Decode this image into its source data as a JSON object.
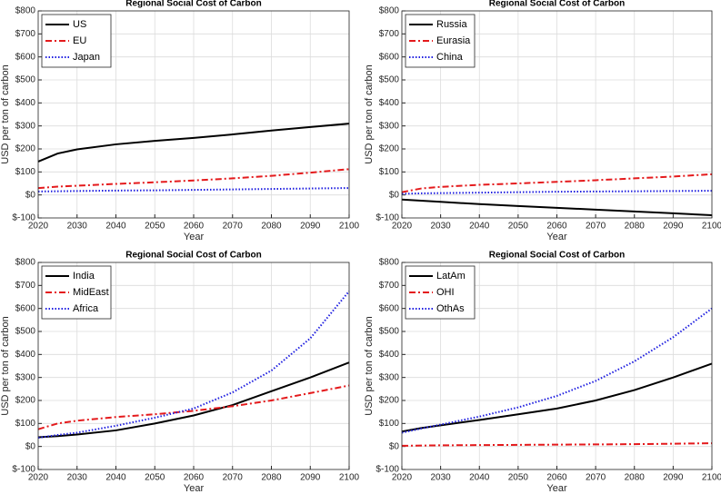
{
  "chart_data": [
    {
      "type": "line",
      "title": "Regional Social Cost of Carbon",
      "xlabel": "Year",
      "ylabel": "USD per ton of carbon",
      "x": [
        2020,
        2025,
        2030,
        2040,
        2050,
        2060,
        2070,
        2080,
        2090,
        2100
      ],
      "series": [
        {
          "name": "US",
          "color": "#000000",
          "style": "solid",
          "values": [
            145,
            180,
            198,
            220,
            235,
            248,
            263,
            280,
            295,
            310
          ]
        },
        {
          "name": "EU",
          "color": "#e41a1c",
          "style": "dashdot",
          "values": [
            30,
            36,
            40,
            48,
            55,
            63,
            72,
            83,
            97,
            112
          ]
        },
        {
          "name": "Japan",
          "color": "#1f1fe0",
          "style": "dotted",
          "values": [
            15,
            16,
            17,
            19,
            20,
            22,
            24,
            26,
            28,
            30
          ]
        }
      ],
      "xlim": [
        2020,
        2100
      ],
      "xticks": [
        2020,
        2030,
        2040,
        2050,
        2060,
        2070,
        2080,
        2090,
        2100
      ],
      "ylim": [
        -100,
        800
      ],
      "yticks": [
        {
          "value": -100,
          "label": "$-100"
        },
        {
          "value": 0,
          "label": "$0"
        },
        {
          "value": 100,
          "label": "$100"
        },
        {
          "value": 200,
          "label": "$200"
        },
        {
          "value": 300,
          "label": "$300"
        },
        {
          "value": 400,
          "label": "$400"
        },
        {
          "value": 500,
          "label": "$500"
        },
        {
          "value": 600,
          "label": "$600"
        },
        {
          "value": 700,
          "label": "$700"
        },
        {
          "value": 800,
          "label": "$800"
        }
      ],
      "grid": true,
      "legend": "top-left"
    },
    {
      "type": "line",
      "title": "Regional Social Cost of Carbon",
      "xlabel": "Year",
      "ylabel": "USD per ton of carbon",
      "x": [
        2020,
        2025,
        2030,
        2040,
        2050,
        2060,
        2070,
        2080,
        2090,
        2100
      ],
      "series": [
        {
          "name": "Russia",
          "color": "#000000",
          "style": "solid",
          "values": [
            -20,
            -25,
            -30,
            -40,
            -48,
            -56,
            -64,
            -72,
            -80,
            -88
          ]
        },
        {
          "name": "Eurasia",
          "color": "#e41a1c",
          "style": "dashdot",
          "values": [
            12,
            28,
            35,
            44,
            50,
            57,
            64,
            72,
            80,
            90
          ]
        },
        {
          "name": "China",
          "color": "#1f1fe0",
          "style": "dotted",
          "values": [
            5,
            7,
            8,
            10,
            12,
            14,
            15,
            16,
            17,
            18
          ]
        }
      ],
      "xlim": [
        2020,
        2100
      ],
      "xticks": [
        2020,
        2030,
        2040,
        2050,
        2060,
        2070,
        2080,
        2090,
        2100
      ],
      "ylim": [
        -100,
        800
      ],
      "yticks": [
        {
          "value": -100,
          "label": "$-100"
        },
        {
          "value": 0,
          "label": "$0"
        },
        {
          "value": 100,
          "label": "$100"
        },
        {
          "value": 200,
          "label": "$200"
        },
        {
          "value": 300,
          "label": "$300"
        },
        {
          "value": 400,
          "label": "$400"
        },
        {
          "value": 500,
          "label": "$500"
        },
        {
          "value": 600,
          "label": "$600"
        },
        {
          "value": 700,
          "label": "$700"
        },
        {
          "value": 800,
          "label": "$800"
        }
      ],
      "grid": true,
      "legend": "top-left"
    },
    {
      "type": "line",
      "title": "Regional Social Cost of Carbon",
      "xlabel": "Year",
      "ylabel": "USD per ton of carbon",
      "x": [
        2020,
        2025,
        2030,
        2040,
        2050,
        2060,
        2070,
        2080,
        2090,
        2100
      ],
      "series": [
        {
          "name": "India",
          "color": "#000000",
          "style": "solid",
          "values": [
            40,
            45,
            52,
            70,
            100,
            135,
            180,
            240,
            300,
            365
          ]
        },
        {
          "name": "MidEast",
          "color": "#e41a1c",
          "style": "dashdot",
          "values": [
            75,
            100,
            112,
            128,
            140,
            155,
            175,
            200,
            232,
            265
          ]
        },
        {
          "name": "Africa",
          "color": "#1f1fe0",
          "style": "dotted",
          "values": [
            38,
            50,
            60,
            90,
            125,
            165,
            235,
            330,
            470,
            675
          ]
        }
      ],
      "xlim": [
        2020,
        2100
      ],
      "xticks": [
        2020,
        2030,
        2040,
        2050,
        2060,
        2070,
        2080,
        2090,
        2100
      ],
      "ylim": [
        -100,
        800
      ],
      "yticks": [
        {
          "value": -100,
          "label": "$-100"
        },
        {
          "value": 0,
          "label": "$0"
        },
        {
          "value": 100,
          "label": "$100"
        },
        {
          "value": 200,
          "label": "$200"
        },
        {
          "value": 300,
          "label": "$300"
        },
        {
          "value": 400,
          "label": "$400"
        },
        {
          "value": 500,
          "label": "$500"
        },
        {
          "value": 600,
          "label": "$600"
        },
        {
          "value": 700,
          "label": "$700"
        },
        {
          "value": 800,
          "label": "$800"
        }
      ],
      "grid": true,
      "legend": "top-left"
    },
    {
      "type": "line",
      "title": "Regional Social Cost of Carbon",
      "xlabel": "Year",
      "ylabel": "USD per ton of carbon",
      "x": [
        2020,
        2025,
        2030,
        2040,
        2050,
        2060,
        2070,
        2080,
        2090,
        2100
      ],
      "series": [
        {
          "name": "LatAm",
          "color": "#000000",
          "style": "solid",
          "values": [
            65,
            80,
            92,
            115,
            140,
            165,
            200,
            245,
            300,
            360
          ]
        },
        {
          "name": "OHI",
          "color": "#e41a1c",
          "style": "dashdot",
          "values": [
            3,
            4,
            5,
            6,
            7,
            8,
            9,
            10,
            12,
            14
          ]
        },
        {
          "name": "OthAs",
          "color": "#1f1fe0",
          "style": "dotted",
          "values": [
            60,
            78,
            95,
            130,
            170,
            220,
            285,
            370,
            475,
            600
          ]
        }
      ],
      "xlim": [
        2020,
        2100
      ],
      "xticks": [
        2020,
        2030,
        2040,
        2050,
        2060,
        2070,
        2080,
        2090,
        2100
      ],
      "ylim": [
        -100,
        800
      ],
      "yticks": [
        {
          "value": -100,
          "label": "$-100"
        },
        {
          "value": 0,
          "label": "$0"
        },
        {
          "value": 100,
          "label": "$100"
        },
        {
          "value": 200,
          "label": "$200"
        },
        {
          "value": 300,
          "label": "$300"
        },
        {
          "value": 400,
          "label": "$400"
        },
        {
          "value": 500,
          "label": "$500"
        },
        {
          "value": 600,
          "label": "$600"
        },
        {
          "value": 700,
          "label": "$700"
        },
        {
          "value": 800,
          "label": "$800"
        }
      ],
      "grid": true,
      "legend": "top-left"
    }
  ]
}
